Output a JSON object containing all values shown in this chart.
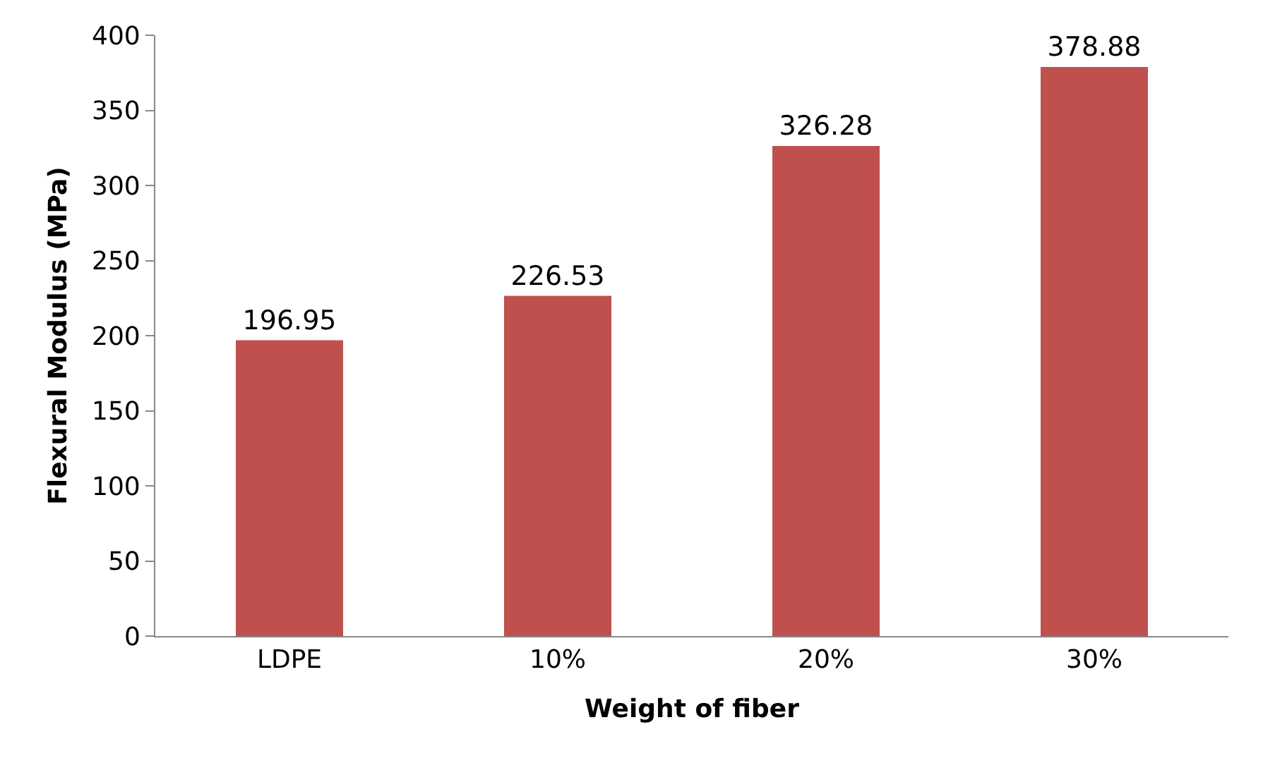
{
  "chart_data": {
    "type": "bar",
    "xlabel": "Weight of fiber",
    "ylabel": "Flexural Modulus (MPa)",
    "categories": [
      "LDPE",
      "10%",
      "20%",
      "30%"
    ],
    "values": [
      196.95,
      226.53,
      326.28,
      378.88
    ],
    "color": "#c0504d",
    "ylim": [
      0,
      400
    ],
    "yticks": [
      0,
      50,
      100,
      150,
      200,
      250,
      300,
      350,
      400
    ],
    "data_labels": true
  }
}
